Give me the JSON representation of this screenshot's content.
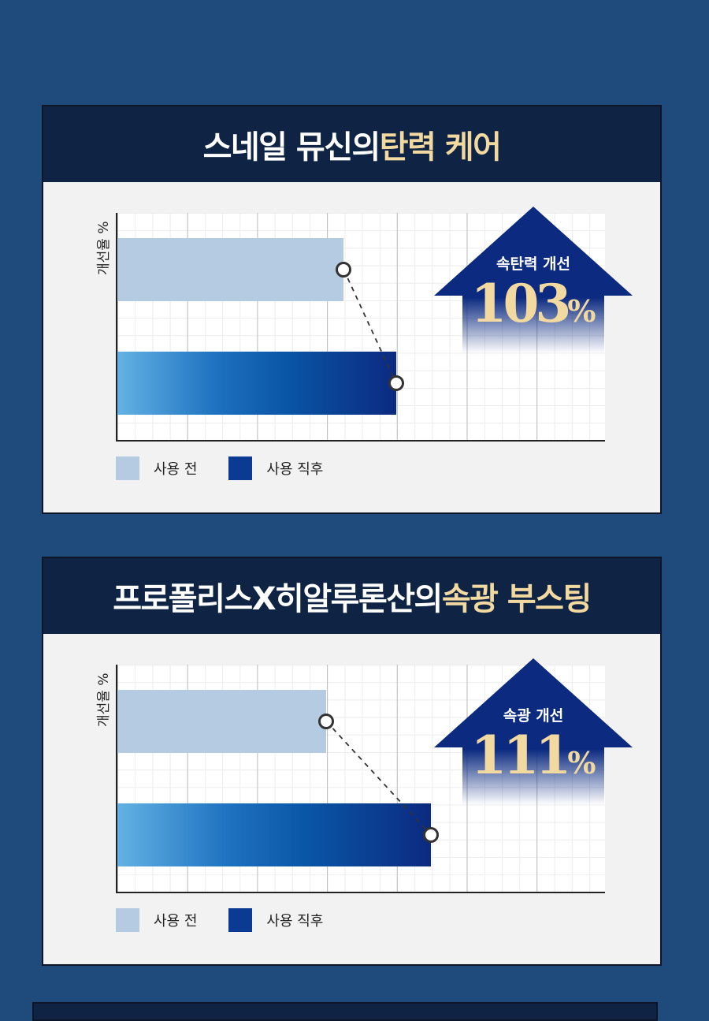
{
  "sections": [
    {
      "title_main": "스네일 뮤신의 ",
      "title_accent": "탄력 케어",
      "ylabel": "개선율 %",
      "legend": [
        "사용 전",
        "사용 직후"
      ],
      "badge_label": "속탄력 개선",
      "badge_value": "103",
      "badge_unit": "%"
    },
    {
      "title_main": "프로폴리스X히알루론산의 ",
      "title_accent": "속광 부스팅",
      "ylabel": "개선율 %",
      "legend": [
        "사용 전",
        "사용 직후"
      ],
      "badge_label": "속광 개선",
      "badge_value": "111",
      "badge_unit": "%"
    }
  ],
  "colors": {
    "background": "#1e4a7c",
    "header": "#0f2444",
    "accent_text": "#f1d9a0",
    "before_bar": "#b4cbe1",
    "after_bar": "#0b2a80"
  },
  "chart_data": [
    {
      "type": "bar",
      "orientation": "horizontal",
      "title": "스네일 뮤신의 탄력 케어",
      "ylabel": "개선율 %",
      "categories": [
        "사용 전",
        "사용 직후"
      ],
      "values": [
        3.25,
        4.0
      ],
      "xlim": [
        0,
        7
      ],
      "grid": true,
      "annotation": "속탄력 개선 103%"
    },
    {
      "type": "bar",
      "orientation": "horizontal",
      "title": "프로폴리스X히알루론산의 속광 부스팅",
      "ylabel": "개선율 %",
      "categories": [
        "사용 전",
        "사용 직후"
      ],
      "values": [
        3.0,
        4.5
      ],
      "xlim": [
        0,
        7
      ],
      "grid": true,
      "annotation": "속광 개선 111%"
    }
  ]
}
